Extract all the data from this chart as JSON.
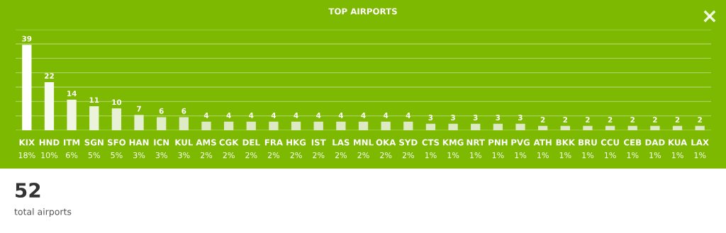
{
  "chart_data": {
    "type": "bar",
    "title": "TOP AIRPORTS",
    "categories": [
      "KIX\n18%",
      "HND\n10%",
      "ITM\n6%",
      "SGN\n5%",
      "SFO\n5%",
      "HAN\n3%",
      "ICN\n3%",
      "KUL\n3%",
      "AMS\n2%",
      "CGK\n2%",
      "DEL\n2%",
      "FRA\n2%",
      "HKG\n2%",
      "IST\n2%",
      "LAS\n2%",
      "MNL\n2%",
      "OKA\n2%",
      "SYD\n2%",
      "CTS\n1%",
      "KMG\n1%",
      "NRT\n1%",
      "PNH\n1%",
      "PVG\n1%",
      "ATH\n1%",
      "BKK\n1%",
      "BRU\n1%",
      "CCU\n1%",
      "CEB\n1%",
      "DAD\n1%",
      "KUA\n1%",
      "LAX\n1%"
    ],
    "values": [
      39,
      22,
      14,
      11,
      10,
      7,
      6,
      6,
      4,
      4,
      4,
      4,
      4,
      4,
      4,
      4,
      4,
      4,
      3,
      3,
      3,
      3,
      3,
      2,
      2,
      2,
      2,
      2,
      2,
      2,
      2
    ],
    "colors": [
      "#ffffff",
      "#f7faee",
      "#f1f6e4",
      "#ecf3db",
      "#e8f0d5",
      "#e4eed0",
      "#e1ecca",
      "#dfebc6",
      "#dce9c2",
      "#dce9c2",
      "#dce9c2",
      "#dce9c2",
      "#dce9c2",
      "#dce9c2",
      "#dce9c2",
      "#dce9c2",
      "#dce9c2",
      "#dce9c2",
      "#dce9c2",
      "#dce9c2",
      "#dce9c2",
      "#dce9c2",
      "#dce9c2",
      "#dce9c2",
      "#dce9c2",
      "#dce9c2",
      "#dce9c2",
      "#dce9c2",
      "#dce9c2",
      "#dce9c2",
      "#dce9c2"
    ],
    "ylim": [
      0,
      46
    ],
    "yticks": [
      {
        "value": 0,
        "label": null
      },
      {
        "value": 6.57,
        "label": null
      },
      {
        "value": 13.14,
        "label": null
      },
      {
        "value": 19.71,
        "label": null
      },
      {
        "value": 26.29,
        "label": null
      },
      {
        "value": 32.86,
        "label": null
      },
      {
        "value": 39.43,
        "label": null
      },
      {
        "value": 46,
        "label": null
      }
    ],
    "grid": "y",
    "data_labels": true,
    "annotations": [
      "52",
      "total airports"
    ]
  }
}
